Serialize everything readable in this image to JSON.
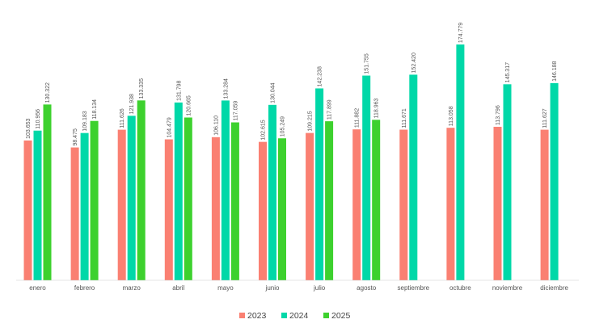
{
  "chart_data": {
    "type": "bar",
    "categories": [
      "enero",
      "febrero",
      "marzo",
      "abril",
      "mayo",
      "junio",
      "julio",
      "agosto",
      "septiembre",
      "octubre",
      "noviembre",
      "diciembre"
    ],
    "series": [
      {
        "name": "2023",
        "color": "#FA8072",
        "values": [
          103653,
          98475,
          111626,
          104479,
          106110,
          102615,
          109215,
          111882,
          111671,
          113058,
          113796,
          111627
        ],
        "labels": [
          "103.653",
          "98.475",
          "111.626",
          "104.479",
          "106.110",
          "102.615",
          "109.215",
          "111.882",
          "111.671",
          "113.058",
          "113.796",
          "111.627"
        ]
      },
      {
        "name": "2024",
        "color": "#00D8A8",
        "values": [
          110956,
          109183,
          121938,
          131798,
          133284,
          130044,
          142238,
          151755,
          152420,
          174779,
          145317,
          146188
        ],
        "labels": [
          "110.956",
          "109.183",
          "121.938",
          "131.798",
          "133.284",
          "130.044",
          "142.238",
          "151.755",
          "152.420",
          "174.779",
          "145.317",
          "146.188"
        ]
      },
      {
        "name": "2025",
        "color": "#3DD12E",
        "values": [
          130322,
          118134,
          133335,
          120665,
          117059,
          105249,
          117899,
          118963,
          null,
          null,
          null,
          null
        ],
        "labels": [
          "130.322",
          "118.134",
          "133.335",
          "120.665",
          "117.059",
          "105.249",
          "117.899",
          "118.963",
          null,
          null,
          null,
          null
        ]
      }
    ],
    "ylim": [
      0,
      180000
    ],
    "grid": false,
    "legend": "bottom-center"
  }
}
